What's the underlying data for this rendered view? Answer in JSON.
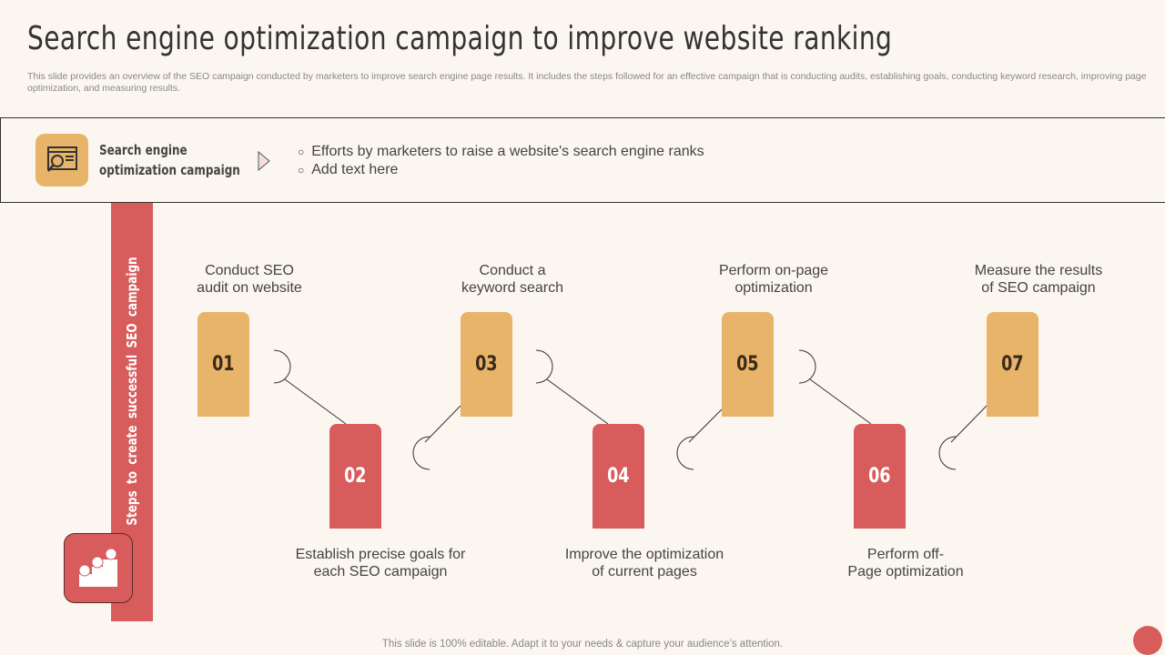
{
  "title": "Search engine optimization campaign to improve website ranking",
  "subtitle": "This slide provides an overview of the SEO campaign conducted by marketers to improve search engine page results. It includes the steps followed for an effective campaign that is conducting audits, establishing goals, conducting keyword research, improving page optimization, and measuring results.",
  "banner": {
    "title_line1": "Search engine",
    "title_line2": "optimization campaign",
    "bullets": [
      "Efforts by marketers to raise a website's search engine ranks",
      "Add text here"
    ]
  },
  "sidebar_label": "Steps to create successful SEO campaign",
  "steps": [
    {
      "num": "01",
      "l1": "Conduct SEO",
      "l2": "audit on website"
    },
    {
      "num": "02",
      "l1": "Establish precise goals for",
      "l2": "each SEO campaign"
    },
    {
      "num": "03",
      "l1": "Conduct a",
      "l2": "keyword search"
    },
    {
      "num": "04",
      "l1": "Improve  the optimization",
      "l2": "of current pages"
    },
    {
      "num": "05",
      "l1": "Perform on-page",
      "l2": "optimization"
    },
    {
      "num": "06",
      "l1": "Perform off-",
      "l2": "Page optimization"
    },
    {
      "num": "07",
      "l1": "Measure the results",
      "l2": "of SEO campaign"
    }
  ],
  "footer": "This slide is 100% editable. Adapt it to your needs & capture your audience’s attention.",
  "colors": {
    "gold": "#e8b46a",
    "red": "#d85c5c",
    "bg": "#fbf6f0"
  }
}
